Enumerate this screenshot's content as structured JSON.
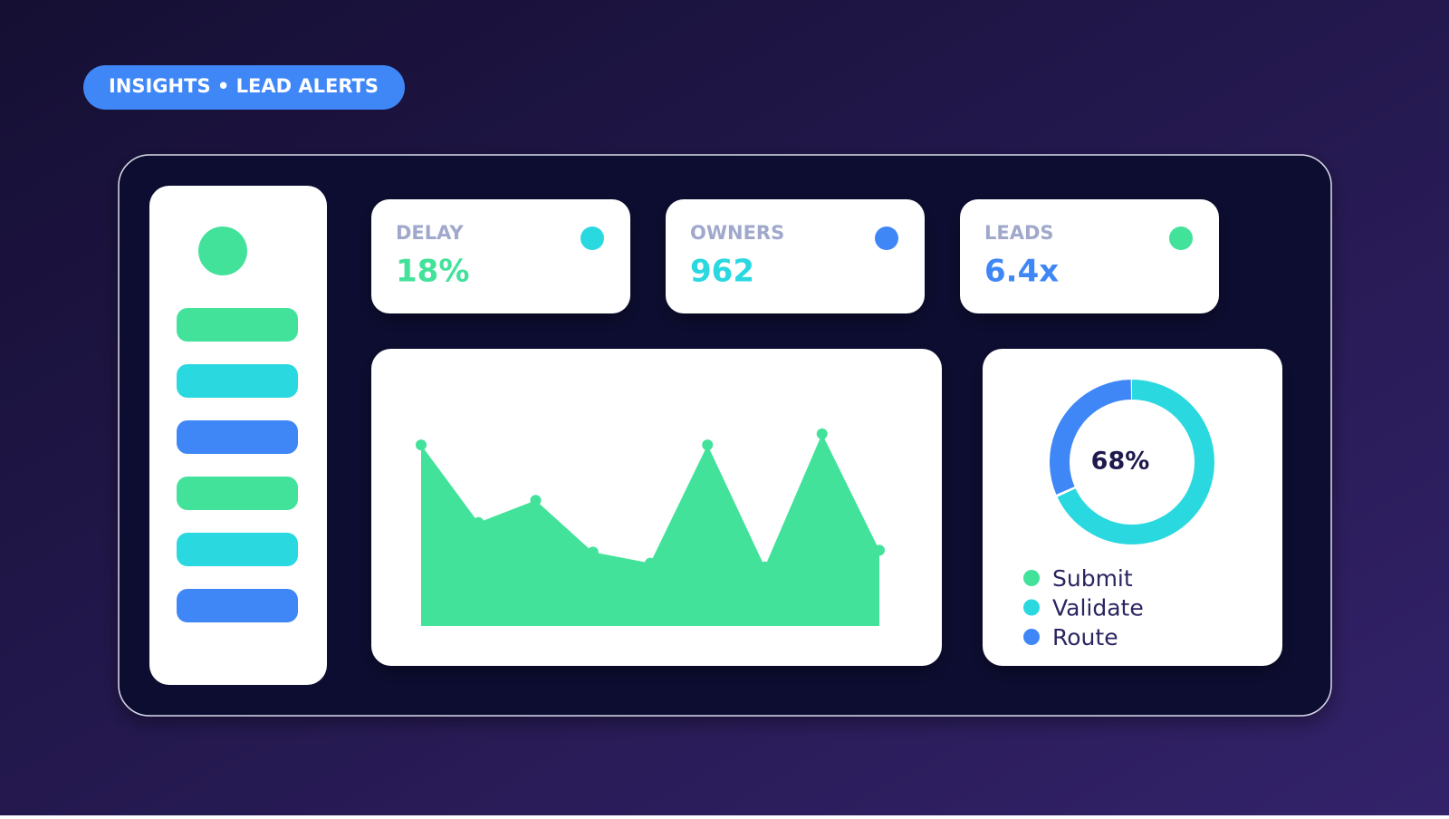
{
  "badge": "INSIGHTS • LEAD ALERTS",
  "kpis": [
    {
      "label": "DELAY",
      "value": "18%",
      "value_color": "#42e29b",
      "dot_color": "#2ad8e0"
    },
    {
      "label": "OWNERS",
      "value": "962",
      "value_color": "#2ad8e0",
      "dot_color": "#3f87f7"
    },
    {
      "label": "LEADS",
      "value": "6.4x",
      "value_color": "#3f87f7",
      "dot_color": "#42e29b"
    }
  ],
  "chart_data": [
    {
      "type": "area",
      "color": "#42e29b",
      "values": [
        98,
        56,
        68,
        40,
        34,
        98,
        32,
        104,
        41
      ]
    },
    {
      "type": "donut",
      "value": 68,
      "value_label": "68%",
      "color": "#2ad8e0",
      "rest_color": "#3f87f7",
      "legend": [
        {
          "name": "Submit",
          "color": "#42e29b"
        },
        {
          "name": "Validate",
          "color": "#2ad8e0"
        },
        {
          "name": "Route",
          "color": "#3f87f7"
        }
      ]
    }
  ]
}
